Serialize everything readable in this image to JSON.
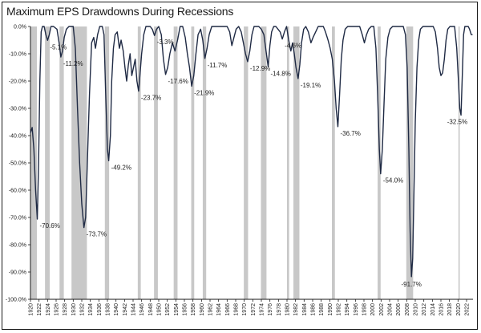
{
  "chart_data": {
    "type": "line",
    "title": "Maximum EPS Drawdowns During Recessions",
    "xlabel": "",
    "ylabel": "",
    "xlim": [
      1920,
      2023.5
    ],
    "ylim": [
      -100,
      0
    ],
    "grid": false,
    "y_ticks": [
      "0.0%",
      "-10.0%",
      "-20.0%",
      "-30.0%",
      "-40.0%",
      "-50.0%",
      "-60.0%",
      "-70.0%",
      "-80.0%",
      "-90.0%",
      "-100.0%"
    ],
    "x_ticks": [
      "1920",
      "1922",
      "1924",
      "1926",
      "1928",
      "1930",
      "1932",
      "1934",
      "1936",
      "1938",
      "1940",
      "1942",
      "1944",
      "1946",
      "1948",
      "1950",
      "1952",
      "1954",
      "1956",
      "1958",
      "1960",
      "1962",
      "1964",
      "1966",
      "1968",
      "1970",
      "1972",
      "1974",
      "1976",
      "1978",
      "1980",
      "1982",
      "1984",
      "1986",
      "1988",
      "1990",
      "1992",
      "1994",
      "1996",
      "1998",
      "2000",
      "2002",
      "2004",
      "2006",
      "2008",
      "2010",
      "2012",
      "2014",
      "2016",
      "2018",
      "2020",
      "2022"
    ],
    "recessions": [
      [
        1920.1,
        1921.5
      ],
      [
        1923.4,
        1924.5
      ],
      [
        1926.8,
        1927.8
      ],
      [
        1929.6,
        1933.2
      ],
      [
        1937.4,
        1938.4
      ],
      [
        1945.1,
        1945.8
      ],
      [
        1948.9,
        1949.8
      ],
      [
        1953.5,
        1954.4
      ],
      [
        1957.6,
        1958.3
      ],
      [
        1960.3,
        1961.1
      ],
      [
        1969.9,
        1970.9
      ],
      [
        1973.9,
        1975.2
      ],
      [
        1980.0,
        1980.5
      ],
      [
        1981.5,
        1982.9
      ],
      [
        1990.5,
        1991.2
      ],
      [
        2001.2,
        2001.9
      ],
      [
        2007.9,
        2009.5
      ],
      [
        2020.1,
        2020.4
      ]
    ],
    "series": [
      {
        "name": "EPS drawdown",
        "points": [
          [
            1920.0,
            -39
          ],
          [
            1920.4,
            -37
          ],
          [
            1920.8,
            -45
          ],
          [
            1921.2,
            -60
          ],
          [
            1921.6,
            -70.6
          ],
          [
            1921.9,
            -50
          ],
          [
            1922.2,
            -20
          ],
          [
            1922.5,
            -2
          ],
          [
            1922.8,
            0
          ],
          [
            1923.2,
            0
          ],
          [
            1923.6,
            -3
          ],
          [
            1924.0,
            -5.1
          ],
          [
            1924.4,
            -3
          ],
          [
            1924.8,
            0
          ],
          [
            1925.4,
            0
          ],
          [
            1926.2,
            -1
          ],
          [
            1926.7,
            -6
          ],
          [
            1927.1,
            -11.2
          ],
          [
            1927.5,
            -9
          ],
          [
            1927.9,
            -4
          ],
          [
            1928.4,
            -1
          ],
          [
            1929.0,
            0
          ],
          [
            1930.0,
            0
          ],
          [
            1930.5,
            -8
          ],
          [
            1931.0,
            -30
          ],
          [
            1931.5,
            -50
          ],
          [
            1932.0,
            -65
          ],
          [
            1932.5,
            -73.7
          ],
          [
            1932.9,
            -70
          ],
          [
            1933.3,
            -50
          ],
          [
            1933.8,
            -25
          ],
          [
            1934.3,
            -6
          ],
          [
            1934.8,
            -4
          ],
          [
            1935.2,
            -8
          ],
          [
            1935.7,
            -3
          ],
          [
            1936.2,
            0
          ],
          [
            1936.8,
            0
          ],
          [
            1937.2,
            -3
          ],
          [
            1937.6,
            -25
          ],
          [
            1938.0,
            -45
          ],
          [
            1938.3,
            -49.2
          ],
          [
            1938.7,
            -40
          ],
          [
            1939.0,
            -20
          ],
          [
            1939.4,
            -8
          ],
          [
            1939.8,
            -3
          ],
          [
            1940.3,
            -2
          ],
          [
            1940.8,
            -8
          ],
          [
            1941.2,
            -5
          ],
          [
            1941.7,
            -9
          ],
          [
            1942.1,
            -15
          ],
          [
            1942.5,
            -20
          ],
          [
            1942.9,
            -14
          ],
          [
            1943.3,
            -10
          ],
          [
            1943.7,
            -18
          ],
          [
            1944.1,
            -15
          ],
          [
            1944.5,
            -12
          ],
          [
            1944.9,
            -20
          ],
          [
            1945.3,
            -23.7
          ],
          [
            1945.6,
            -18
          ],
          [
            1946.0,
            -10
          ],
          [
            1946.5,
            -3
          ],
          [
            1947.0,
            0
          ],
          [
            1947.6,
            0
          ],
          [
            1948.0,
            0
          ],
          [
            1948.5,
            -1
          ],
          [
            1949.0,
            -3.3
          ],
          [
            1949.5,
            -1
          ],
          [
            1950.0,
            0
          ],
          [
            1950.6,
            -3
          ],
          [
            1951.1,
            -12
          ],
          [
            1951.6,
            -17.6
          ],
          [
            1952.1,
            -15
          ],
          [
            1952.6,
            -10
          ],
          [
            1953.2,
            -6
          ],
          [
            1953.8,
            -9
          ],
          [
            1954.4,
            -5
          ],
          [
            1955.0,
            0
          ],
          [
            1955.6,
            0
          ],
          [
            1956.2,
            -4
          ],
          [
            1956.7,
            -10
          ],
          [
            1957.2,
            -15
          ],
          [
            1957.7,
            -21.9
          ],
          [
            1958.2,
            -18
          ],
          [
            1958.7,
            -10
          ],
          [
            1959.2,
            -3
          ],
          [
            1959.8,
            -1
          ],
          [
            1960.3,
            -5
          ],
          [
            1960.8,
            -11.7
          ],
          [
            1961.3,
            -8
          ],
          [
            1961.8,
            -3
          ],
          [
            1962.4,
            0
          ],
          [
            1963.0,
            0
          ],
          [
            1964.0,
            0
          ],
          [
            1965.0,
            0
          ],
          [
            1966.0,
            0
          ],
          [
            1966.6,
            -2
          ],
          [
            1967.1,
            -7
          ],
          [
            1967.6,
            -4
          ],
          [
            1968.1,
            -1
          ],
          [
            1968.7,
            0
          ],
          [
            1969.3,
            -2
          ],
          [
            1969.8,
            -6
          ],
          [
            1970.3,
            -10
          ],
          [
            1970.8,
            -12.9
          ],
          [
            1971.3,
            -9
          ],
          [
            1971.8,
            -3
          ],
          [
            1972.3,
            0
          ],
          [
            1972.9,
            0
          ],
          [
            1973.4,
            0
          ],
          [
            1974.0,
            -1
          ],
          [
            1974.6,
            -3
          ],
          [
            1975.1,
            -9
          ],
          [
            1975.6,
            -14.8
          ],
          [
            1976.0,
            -7
          ],
          [
            1976.4,
            -2
          ],
          [
            1976.9,
            0
          ],
          [
            1977.4,
            0
          ],
          [
            1977.9,
            -1
          ],
          [
            1978.4,
            -2
          ],
          [
            1978.9,
            -4.6
          ],
          [
            1979.4,
            -2
          ],
          [
            1979.9,
            0
          ],
          [
            1980.4,
            -5
          ],
          [
            1980.9,
            -9
          ],
          [
            1981.3,
            -6
          ],
          [
            1981.7,
            -10
          ],
          [
            1982.1,
            -15
          ],
          [
            1982.6,
            -19.1
          ],
          [
            1983.0,
            -14
          ],
          [
            1983.4,
            -6
          ],
          [
            1983.9,
            -1
          ],
          [
            1984.4,
            0
          ],
          [
            1985.0,
            -2
          ],
          [
            1985.6,
            -6
          ],
          [
            1986.1,
            -4
          ],
          [
            1986.7,
            -2
          ],
          [
            1987.3,
            0
          ],
          [
            1987.9,
            0
          ],
          [
            1988.5,
            0
          ],
          [
            1989.0,
            -2
          ],
          [
            1989.6,
            -5
          ],
          [
            1990.1,
            -8
          ],
          [
            1990.6,
            -12
          ],
          [
            1991.1,
            -20
          ],
          [
            1991.5,
            -30
          ],
          [
            1991.9,
            -36.7
          ],
          [
            1992.3,
            -25
          ],
          [
            1992.7,
            -12
          ],
          [
            1993.1,
            -5
          ],
          [
            1993.6,
            -1
          ],
          [
            1994.2,
            0
          ],
          [
            1995.0,
            0
          ],
          [
            1996.0,
            0
          ],
          [
            1997.0,
            0
          ],
          [
            1997.6,
            -3
          ],
          [
            1998.1,
            -6
          ],
          [
            1998.6,
            -3
          ],
          [
            1999.1,
            -1
          ],
          [
            1999.7,
            0
          ],
          [
            2000.3,
            0
          ],
          [
            2000.8,
            -8
          ],
          [
            2001.2,
            -25
          ],
          [
            2001.6,
            -45
          ],
          [
            2001.9,
            -54.0
          ],
          [
            2002.3,
            -45
          ],
          [
            2002.7,
            -28
          ],
          [
            2003.1,
            -12
          ],
          [
            2003.6,
            -4
          ],
          [
            2004.1,
            -1
          ],
          [
            2004.7,
            0
          ],
          [
            2005.5,
            0
          ],
          [
            2006.5,
            0
          ],
          [
            2007.2,
            0
          ],
          [
            2007.7,
            -3
          ],
          [
            2008.1,
            -15
          ],
          [
            2008.5,
            -45
          ],
          [
            2008.8,
            -75
          ],
          [
            2009.1,
            -91.7
          ],
          [
            2009.4,
            -85
          ],
          [
            2009.7,
            -60
          ],
          [
            2010.0,
            -35
          ],
          [
            2010.4,
            -15
          ],
          [
            2010.8,
            -5
          ],
          [
            2011.2,
            -1
          ],
          [
            2011.8,
            0
          ],
          [
            2012.5,
            0
          ],
          [
            2013.5,
            0
          ],
          [
            2014.2,
            0
          ],
          [
            2014.7,
            -2
          ],
          [
            2015.2,
            -8
          ],
          [
            2015.6,
            -15
          ],
          [
            2016.0,
            -18
          ],
          [
            2016.4,
            -17
          ],
          [
            2016.8,
            -12
          ],
          [
            2017.2,
            -5
          ],
          [
            2017.6,
            -1
          ],
          [
            2018.1,
            0
          ],
          [
            2018.7,
            0
          ],
          [
            2019.2,
            0
          ],
          [
            2019.7,
            -8
          ],
          [
            2020.1,
            -20
          ],
          [
            2020.4,
            -30
          ],
          [
            2020.7,
            -32.5
          ],
          [
            2021.0,
            -18
          ],
          [
            2021.3,
            -3
          ],
          [
            2021.6,
            0
          ],
          [
            2022.0,
            0
          ],
          [
            2022.4,
            0
          ],
          [
            2022.7,
            -1
          ],
          [
            2023.1,
            -3
          ],
          [
            2023.4,
            -3
          ]
        ]
      }
    ],
    "data_labels": [
      {
        "year": 1921.6,
        "value": -70.6,
        "text": "-70.6%"
      },
      {
        "year": 1924.0,
        "value": -5.1,
        "text": "-5.1%"
      },
      {
        "year": 1927.1,
        "value": -11.2,
        "text": "-11.2%"
      },
      {
        "year": 1932.5,
        "value": -73.7,
        "text": "-73.7%"
      },
      {
        "year": 1938.3,
        "value": -49.2,
        "text": "-49.2%"
      },
      {
        "year": 1945.3,
        "value": -23.7,
        "text": "-23.7%"
      },
      {
        "year": 1949.0,
        "value": -3.3,
        "text": "-3.3%"
      },
      {
        "year": 1951.6,
        "value": -17.6,
        "text": "-17.6%"
      },
      {
        "year": 1957.7,
        "value": -21.9,
        "text": "-21.9%"
      },
      {
        "year": 1960.8,
        "value": -11.7,
        "text": "-11.7%"
      },
      {
        "year": 1970.8,
        "value": -12.9,
        "text": "-12.9%"
      },
      {
        "year": 1975.6,
        "value": -14.8,
        "text": "-14.8%"
      },
      {
        "year": 1978.9,
        "value": -4.6,
        "text": "-4.6%"
      },
      {
        "year": 1982.6,
        "value": -19.1,
        "text": "-19.1%"
      },
      {
        "year": 1991.9,
        "value": -36.7,
        "text": "-36.7%"
      },
      {
        "year": 2001.9,
        "value": -54.0,
        "text": "-54.0%"
      },
      {
        "year": 2009.1,
        "value": -91.7,
        "text": "-91.7%"
      },
      {
        "year": 2020.7,
        "value": -32.5,
        "text": "-32.5%"
      }
    ],
    "colors": {
      "line": "#1f2a44",
      "recession": "#c8c8c8",
      "axis": "#1a1a1a",
      "text": "#222222"
    }
  }
}
